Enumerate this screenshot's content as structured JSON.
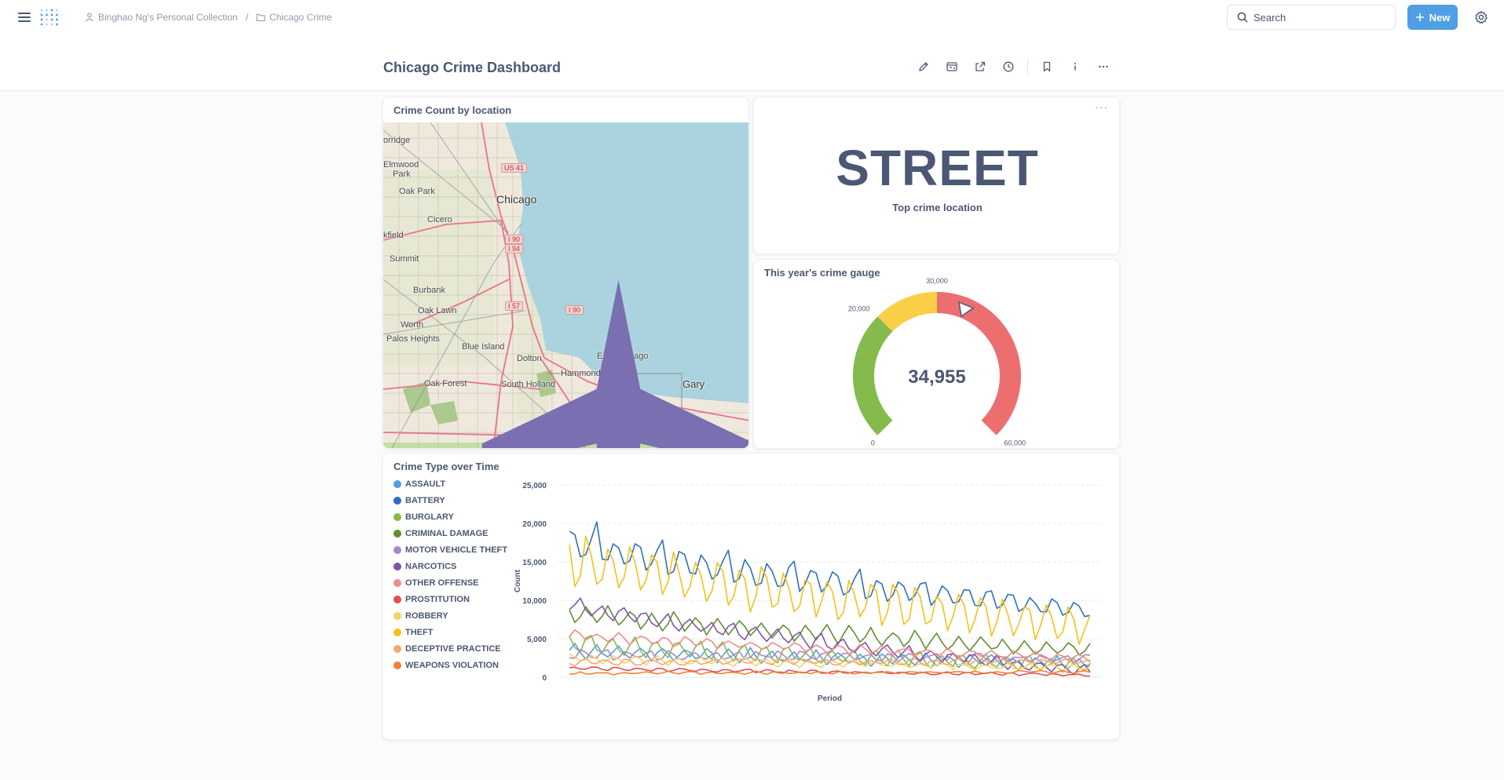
{
  "nav": {
    "breadcrumb": [
      {
        "label": "Binghao Ng's Personal Collection",
        "icon": "person-icon"
      },
      {
        "label": "Chicago Crime",
        "icon": "folder-icon"
      }
    ],
    "breadcrumb_sep": "/",
    "search_placeholder": "Search",
    "new_label": "New"
  },
  "dashboard": {
    "title": "Chicago Crime Dashboard",
    "actions": [
      "pencil-icon",
      "subscription-icon",
      "share-icon",
      "history-icon",
      "bookmark-icon",
      "info-icon",
      "more-icon"
    ]
  },
  "map_card": {
    "title": "Crime Count by location",
    "labels": [
      "orridge",
      "Elmwood",
      "Park",
      "Oak Park",
      "Chicago",
      "Cicero",
      "kfield",
      "Summit",
      "Burbank",
      "Oak Lawn",
      "Worth",
      "Palos Heights",
      "Blue Island",
      "Dolton",
      "Oak Forest",
      "South Holland",
      "Hammond",
      "East Chicago",
      "Gary"
    ],
    "highways": [
      "US 41",
      "I 90",
      "I 94",
      "I 57",
      "I 90"
    ],
    "colors": {
      "land": "#efe9dd",
      "water": "#aad3df",
      "major_road": "#e8728a",
      "road": "#b7a98e"
    }
  },
  "scalar_card": {
    "value": "STREET",
    "label": "Top crime location",
    "more": "···"
  },
  "gauge_card": {
    "title": "This year's crime gauge",
    "value": 34955,
    "value_label": "34,955",
    "min": 0,
    "max": 60000,
    "segments": [
      {
        "from": 0,
        "to": 20000,
        "color": "#84bb4c"
      },
      {
        "from": 20000,
        "to": 30000,
        "color": "#f9cf48"
      },
      {
        "from": 30000,
        "to": 60000,
        "color": "#ed6e6e"
      }
    ],
    "tick_labels": [
      {
        "value": 0,
        "label": "0"
      },
      {
        "value": 20000,
        "label": "20,000"
      },
      {
        "value": 30000,
        "label": "30,000"
      },
      {
        "value": 60000,
        "label": "60,000"
      }
    ]
  },
  "line_card": {
    "title": "Crime Type over Time",
    "ylabel": "Count",
    "xlabel": "Period",
    "y_ticks": [
      "25,000",
      "20,000",
      "15,000",
      "10,000",
      "5,000",
      "0"
    ],
    "legend": [
      {
        "name": "ASSAULT",
        "color": "#509ee3"
      },
      {
        "name": "BATTERY",
        "color": "#2f6fbf"
      },
      {
        "name": "BURGLARY",
        "color": "#84bb4c"
      },
      {
        "name": "CRIMINAL DAMAGE",
        "color": "#5f8f2f"
      },
      {
        "name": "MOTOR VEHICLE THEFT",
        "color": "#a989c5"
      },
      {
        "name": "NARCOTICS",
        "color": "#7e56a6"
      },
      {
        "name": "OTHER OFFENSE",
        "color": "#ef8c8c"
      },
      {
        "name": "PROSTITUTION",
        "color": "#e34e52"
      },
      {
        "name": "ROBBERY",
        "color": "#f9d45c"
      },
      {
        "name": "THEFT",
        "color": "#f2c21b"
      },
      {
        "name": "DECEPTIVE PRACTICE",
        "color": "#f2a86f"
      },
      {
        "name": "WEAPONS VIOLATION",
        "color": "#ee8337"
      }
    ]
  },
  "chart_data": {
    "type": "line",
    "title": "Crime Type over Time",
    "xlabel": "Period",
    "ylabel": "Count",
    "ylim": [
      0,
      25000
    ],
    "x_count": 96,
    "grid": true,
    "legend_position": "left",
    "series": [
      {
        "name": "ASSAULT",
        "color": "#509ee3",
        "start": 3500,
        "end": 1800,
        "amp": 900,
        "noise": 300
      },
      {
        "name": "BATTERY",
        "color": "#2f6fbf",
        "start": 17500,
        "end": 8500,
        "amp": 1800,
        "noise": 400,
        "extra_peak": 2500
      },
      {
        "name": "BURGLARY",
        "color": "#84bb4c",
        "start": 4500,
        "end": 1500,
        "amp": 1200,
        "noise": 300
      },
      {
        "name": "CRIMINAL DAMAGE",
        "color": "#5f8f2f",
        "start": 8500,
        "end": 3500,
        "amp": 1200,
        "noise": 300
      },
      {
        "name": "MOTOR VEHICLE THEFT",
        "color": "#a989c5",
        "start": 3000,
        "end": 2500,
        "amp": 600,
        "noise": 300
      },
      {
        "name": "NARCOTICS",
        "color": "#7e56a6",
        "start": 9500,
        "end": 700,
        "amp": 1000,
        "noise": 300
      },
      {
        "name": "OTHER OFFENSE",
        "color": "#ef8c8c",
        "start": 5500,
        "end": 2500,
        "amp": 600,
        "noise": 200
      },
      {
        "name": "PROSTITUTION",
        "color": "#e34e52",
        "start": 1200,
        "end": 300,
        "amp": 200,
        "noise": 100
      },
      {
        "name": "ROBBERY",
        "color": "#f9d45c",
        "start": 2500,
        "end": 1200,
        "amp": 500,
        "noise": 200
      },
      {
        "name": "THEFT",
        "color": "#f2c21b",
        "start": 15500,
        "end": 6500,
        "amp": 3200,
        "noise": 600
      },
      {
        "name": "DECEPTIVE PRACTICE",
        "color": "#f2a86f",
        "start": 2000,
        "end": 2000,
        "amp": 400,
        "noise": 200
      },
      {
        "name": "WEAPONS VIOLATION",
        "color": "#ee8337",
        "start": 500,
        "end": 700,
        "amp": 150,
        "noise": 100
      }
    ]
  }
}
